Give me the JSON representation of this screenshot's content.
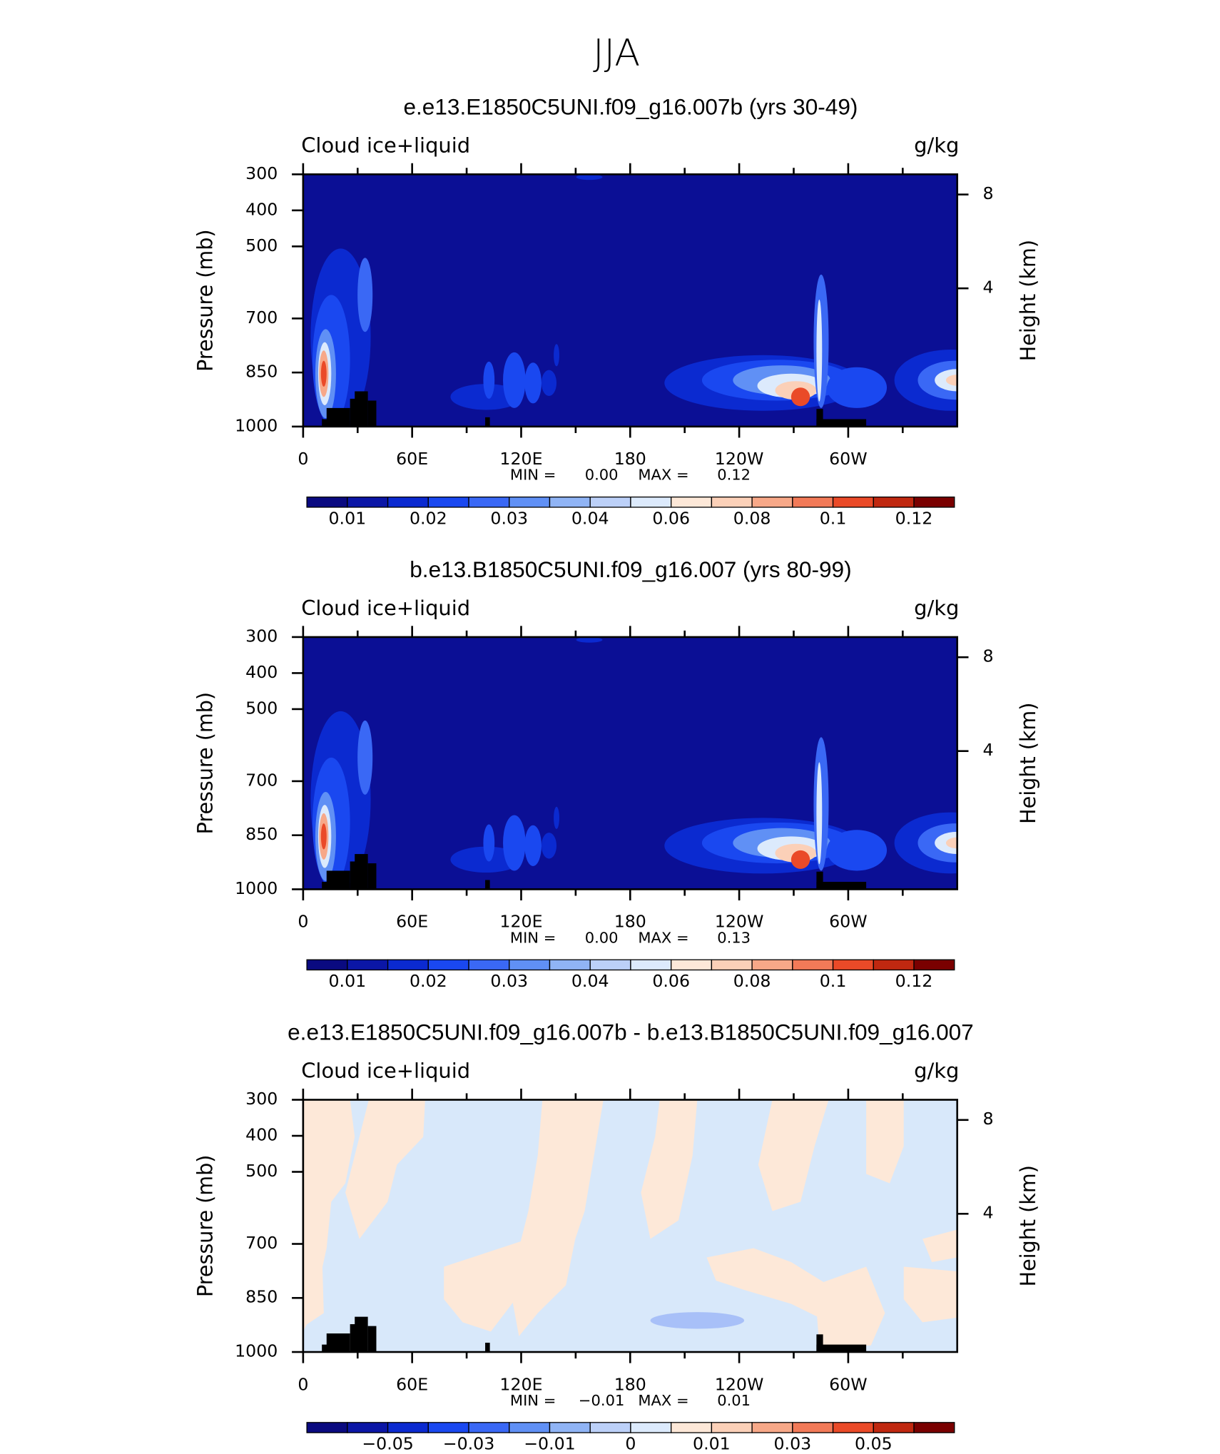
{
  "title": "JJA",
  "chart_data": [
    {
      "type": "contour",
      "title": "e.e13.E1850C5UNI.f09_g16.007b (yrs 30-49)",
      "left_label": "Cloud ice+liquid",
      "right_label": "g/kg",
      "ylabel": "Pressure (mb)",
      "y2label": "Height (km)",
      "xlim": [
        0,
        360
      ],
      "xticks": [
        0,
        {
          "value": 60,
          "label": "60E"
        },
        {
          "value": 120,
          "label": "120E"
        },
        180,
        {
          "value": 240,
          "label": "120W"
        },
        {
          "value": 300,
          "label": "60W"
        }
      ],
      "ylim": [
        1000,
        300
      ],
      "yticks": [
        300,
        400,
        500,
        700,
        850,
        1000
      ],
      "y2ticks": [
        8,
        4
      ],
      "stats": [
        {
          "name": "MIN =",
          "value": 0,
          "label": "0.00"
        },
        {
          "name": "MAX =",
          "value": 0.12,
          "label": "0.12"
        }
      ],
      "colorbar": {
        "levels": [
          0.01,
          0.015,
          0.02,
          0.025,
          0.03,
          0.035,
          0.04,
          0.05,
          0.06,
          0.07,
          0.08,
          0.09,
          0.1,
          0.11,
          0.12
        ],
        "label_every": 2,
        "label_first": 0,
        "colors": [
          "#0a0a80",
          "#0b16a6",
          "#0b2ad0",
          "#1a48f0",
          "#3a68f5",
          "#6090f5",
          "#90b4f5",
          "#bcd0f8",
          "#dceafc",
          "#fde8d8",
          "#fbd0b8",
          "#f7a888",
          "#f27a58",
          "#ea4a28",
          "#c02810",
          "#7a0000"
        ]
      }
    },
    {
      "type": "contour",
      "title": "b.e13.B1850C5UNI.f09_g16.007 (yrs 80-99)",
      "left_label": "Cloud ice+liquid",
      "right_label": "g/kg",
      "ylabel": "Pressure (mb)",
      "y2label": "Height (km)",
      "xlim": [
        0,
        360
      ],
      "xticks": [
        0,
        {
          "value": 60,
          "label": "60E"
        },
        {
          "value": 120,
          "label": "120E"
        },
        180,
        {
          "value": 240,
          "label": "120W"
        },
        {
          "value": 300,
          "label": "60W"
        }
      ],
      "ylim": [
        1000,
        300
      ],
      "yticks": [
        300,
        400,
        500,
        700,
        850,
        1000
      ],
      "y2ticks": [
        8,
        4
      ],
      "stats": [
        {
          "name": "MIN =",
          "value": 0,
          "label": "0.00"
        },
        {
          "name": "MAX =",
          "value": 0.13,
          "label": "0.13"
        }
      ],
      "colorbar": {
        "levels": [
          0.01,
          0.015,
          0.02,
          0.025,
          0.03,
          0.035,
          0.04,
          0.05,
          0.06,
          0.07,
          0.08,
          0.09,
          0.1,
          0.11,
          0.12
        ],
        "label_every": 2,
        "label_first": 0,
        "colors": [
          "#0a0a80",
          "#0b16a6",
          "#0b2ad0",
          "#1a48f0",
          "#3a68f5",
          "#6090f5",
          "#90b4f5",
          "#bcd0f8",
          "#dceafc",
          "#fde8d8",
          "#fbd0b8",
          "#f7a888",
          "#f27a58",
          "#ea4a28",
          "#c02810",
          "#7a0000"
        ]
      }
    },
    {
      "type": "contour",
      "title": "e.e13.E1850C5UNI.f09_g16.007b - b.e13.B1850C5UNI.f09_g16.007",
      "left_label": "Cloud ice+liquid",
      "right_label": "g/kg",
      "ylabel": "Pressure (mb)",
      "y2label": "Height (km)",
      "xlim": [
        0,
        360
      ],
      "xticks": [
        0,
        {
          "value": 60,
          "label": "60E"
        },
        {
          "value": 120,
          "label": "120E"
        },
        180,
        {
          "value": 240,
          "label": "120W"
        },
        {
          "value": 300,
          "label": "60W"
        }
      ],
      "ylim": [
        1000,
        300
      ],
      "yticks": [
        300,
        400,
        500,
        700,
        850,
        1000
      ],
      "y2ticks": [
        8,
        4
      ],
      "stats": [
        {
          "name": "MIN =",
          "value": -0.01,
          "label": "−0.01"
        },
        {
          "name": "MAX =",
          "value": 0.01,
          "label": "0.01"
        }
      ],
      "colorbar": {
        "levels": [
          -0.06,
          {
            "value": -0.05,
            "label": "−0.05"
          },
          -0.04,
          {
            "value": -0.03,
            "label": "−0.03"
          },
          -0.02,
          {
            "value": -0.01,
            "label": "−0.01"
          },
          -0.005,
          0,
          0.005,
          0.01,
          0.02,
          0.03,
          0.04,
          0.05,
          0.06
        ],
        "label_every": 2,
        "label_first": 1,
        "colors": [
          "#0a0a80",
          "#0b16a6",
          "#0b2ad0",
          "#1a48f0",
          "#3a68f5",
          "#6090f5",
          "#90b4f5",
          "#bcd0f8",
          "#dceafc",
          "#fde8d8",
          "#fbd0b8",
          "#f7a888",
          "#f27a58",
          "#ea4a28",
          "#c02810",
          "#7a0000"
        ]
      }
    }
  ]
}
